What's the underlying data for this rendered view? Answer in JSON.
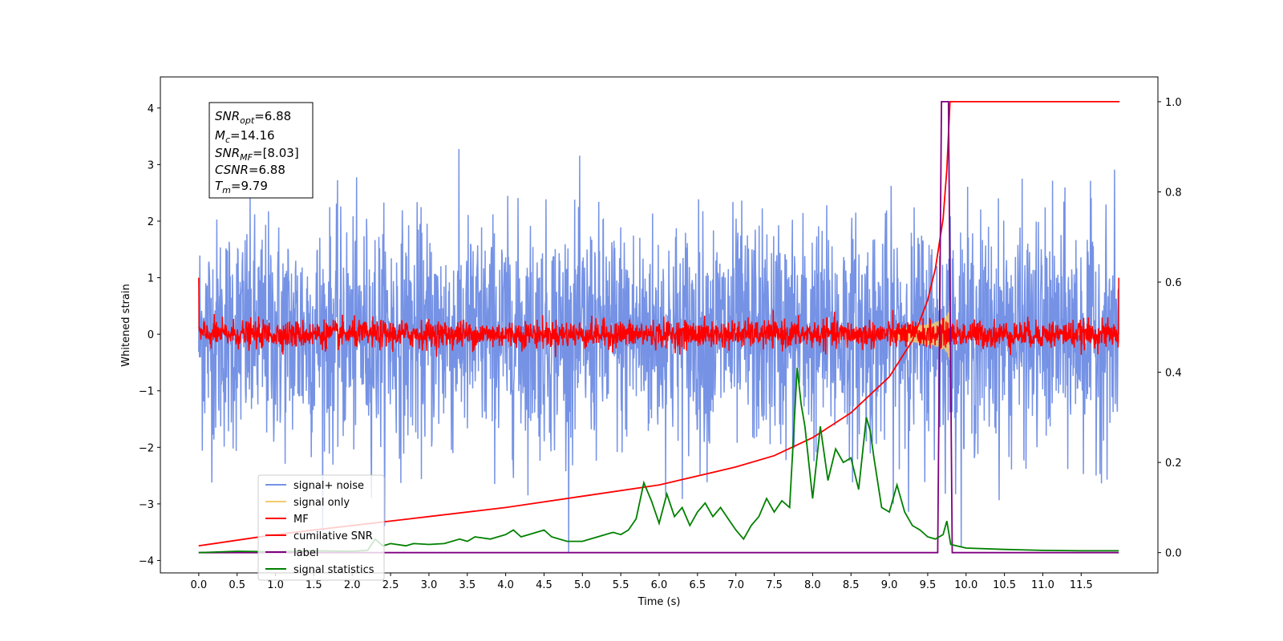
{
  "chart_data": {
    "type": "line",
    "xlabel": "Time (s)",
    "ylabel": "Whitened strain",
    "xlim": [
      -0.5,
      12.5
    ],
    "ylim": [
      -4.22,
      4.55
    ],
    "y2lim": [
      -0.045,
      1.055
    ],
    "x_ticks": [
      0.0,
      0.5,
      1.0,
      1.5,
      2.0,
      2.5,
      3.0,
      3.5,
      4.0,
      4.5,
      5.0,
      5.5,
      6.0,
      6.5,
      7.0,
      7.5,
      8.0,
      8.5,
      9.0,
      9.5,
      10.0,
      10.5,
      11.0,
      11.5
    ],
    "x_tick_labels": [
      "0.0",
      "0.5",
      "1.0",
      "1.5",
      "2.0",
      "2.5",
      "3.0",
      "3.5",
      "4.0",
      "4.5",
      "5.0",
      "5.5",
      "6.0",
      "6.5",
      "7.0",
      "7.5",
      "8.0",
      "8.5",
      "9.0",
      "9.5",
      "10.0",
      "10.5",
      "11.0",
      "11.5"
    ],
    "y_ticks": [
      -4,
      -3,
      -2,
      -1,
      0,
      1,
      2,
      3,
      4
    ],
    "y_tick_labels": [
      "−4",
      "−3",
      "−2",
      "−1",
      "0",
      "1",
      "2",
      "3",
      "4"
    ],
    "y2_ticks": [
      0.0,
      0.2,
      0.4,
      0.6,
      0.8,
      1.0
    ],
    "y2_tick_labels": [
      "0.0",
      "0.2",
      "0.4",
      "0.6",
      "0.8",
      "1.0"
    ],
    "grid": false,
    "legend_position": "lower-left",
    "series": [
      {
        "name": "signal+ noise",
        "color": "#7592e5",
        "axis": "left",
        "kind": "noise",
        "x_range": [
          0,
          11.99
        ],
        "mean": 0.0,
        "sd": 1.0,
        "peak": 4.17,
        "trough": -3.85
      },
      {
        "name": "signal only",
        "color": "#f5c96b",
        "axis": "left",
        "kind": "chirp",
        "t_merge": 9.79,
        "peak_amplitude": 0.62,
        "start": 9.0
      },
      {
        "name": "MF",
        "color": "#ff0000",
        "axis": "left",
        "kind": "noise",
        "x_range": [
          0,
          11.99
        ],
        "mean": 0.0,
        "sd": 0.12,
        "edge_values": [
          1.0,
          1.0
        ]
      },
      {
        "name": "cumilative SNR",
        "color": "#ff0000",
        "axis": "right",
        "x": [
          0.0,
          1.0,
          2.0,
          3.0,
          4.0,
          5.0,
          6.0,
          7.0,
          7.5,
          8.0,
          8.5,
          9.0,
          9.3,
          9.5,
          9.6,
          9.7,
          9.75,
          9.79,
          12.0
        ],
        "y": [
          0.015,
          0.04,
          0.06,
          0.08,
          0.1,
          0.125,
          0.15,
          0.19,
          0.215,
          0.255,
          0.31,
          0.39,
          0.47,
          0.56,
          0.63,
          0.74,
          0.85,
          1.0,
          1.0
        ]
      },
      {
        "name": "label",
        "color": "#800080",
        "axis": "right",
        "x": [
          0.0,
          9.63,
          9.68,
          9.77,
          9.82,
          11.99
        ],
        "y": [
          0.0,
          0.0,
          1.0,
          1.0,
          0.0,
          0.0
        ]
      },
      {
        "name": "signal statistics",
        "color": "#008000",
        "axis": "right",
        "x": [
          0.0,
          0.5,
          1.0,
          1.5,
          2.0,
          2.2,
          2.3,
          2.4,
          2.5,
          2.7,
          2.8,
          3.0,
          3.2,
          3.4,
          3.5,
          3.6,
          3.8,
          4.0,
          4.1,
          4.2,
          4.3,
          4.5,
          4.6,
          4.8,
          5.0,
          5.2,
          5.4,
          5.5,
          5.6,
          5.7,
          5.8,
          5.9,
          6.0,
          6.1,
          6.2,
          6.3,
          6.4,
          6.5,
          6.6,
          6.7,
          6.8,
          6.9,
          7.0,
          7.1,
          7.2,
          7.3,
          7.4,
          7.5,
          7.6,
          7.7,
          7.8,
          7.85,
          7.9,
          8.0,
          8.1,
          8.2,
          8.3,
          8.4,
          8.5,
          8.6,
          8.7,
          8.75,
          8.8,
          8.9,
          9.0,
          9.1,
          9.2,
          9.3,
          9.4,
          9.5,
          9.6,
          9.7,
          9.75,
          9.8,
          10.0,
          10.5,
          11.0,
          11.5,
          11.99
        ],
        "y": [
          0.0,
          0.003,
          0.002,
          0.004,
          0.003,
          0.005,
          0.03,
          0.015,
          0.02,
          0.015,
          0.02,
          0.018,
          0.02,
          0.03,
          0.025,
          0.035,
          0.03,
          0.04,
          0.05,
          0.035,
          0.04,
          0.05,
          0.035,
          0.025,
          0.025,
          0.035,
          0.045,
          0.04,
          0.05,
          0.075,
          0.155,
          0.115,
          0.065,
          0.13,
          0.08,
          0.1,
          0.06,
          0.09,
          0.11,
          0.08,
          0.1,
          0.075,
          0.05,
          0.03,
          0.06,
          0.08,
          0.12,
          0.09,
          0.115,
          0.1,
          0.41,
          0.33,
          0.28,
          0.12,
          0.28,
          0.16,
          0.23,
          0.2,
          0.21,
          0.14,
          0.3,
          0.27,
          0.21,
          0.1,
          0.09,
          0.15,
          0.09,
          0.06,
          0.05,
          0.035,
          0.03,
          0.04,
          0.07,
          0.018,
          0.01,
          0.007,
          0.005,
          0.004,
          0.004
        ]
      }
    ]
  },
  "annotation": {
    "snr_opt": {
      "main": "SNR",
      "sub": "opt",
      "value": "=6.88"
    },
    "mc": {
      "main": "M",
      "sub": "c",
      "value": "=14.16"
    },
    "snr_mf": {
      "main": "SNR",
      "sub": "MF",
      "value": "=[8.03]"
    },
    "csnr": {
      "main": "CSNR",
      "value": "=6.88"
    },
    "tm": {
      "main": "T",
      "sub": "m",
      "value": "=9.79"
    }
  }
}
